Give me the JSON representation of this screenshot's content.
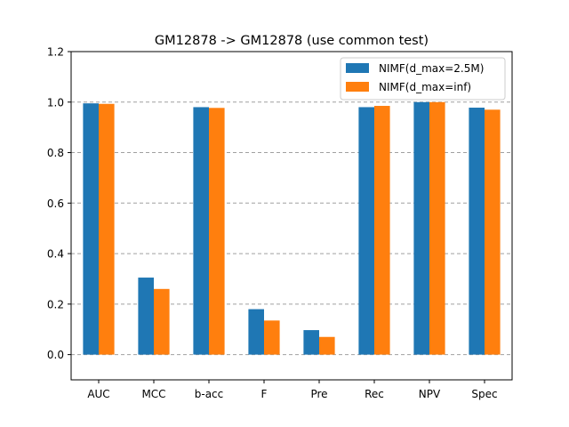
{
  "chart_data": {
    "type": "bar",
    "title": "GM12878 -> GM12878 (use common test)",
    "xlabel": "",
    "ylabel": "",
    "categories": [
      "AUC",
      "MCC",
      "b-acc",
      "F",
      "Pre",
      "Rec",
      "NPV",
      "Spec"
    ],
    "series": [
      {
        "name": "NIMF(d_max=2.5M)",
        "color": "#1f77b4",
        "values": [
          0.995,
          0.305,
          0.98,
          0.18,
          0.097,
          0.98,
          1.0,
          0.978
        ]
      },
      {
        "name": "NIMF(d_max=inf)",
        "color": "#ff7f0e",
        "values": [
          0.993,
          0.26,
          0.977,
          0.135,
          0.07,
          0.985,
          1.0,
          0.97
        ]
      }
    ],
    "ylim": [
      -0.1,
      1.2
    ],
    "yticks": [
      0.0,
      0.2,
      0.4,
      0.6,
      0.8,
      1.0,
      1.2
    ],
    "ytick_labels": [
      "0.0",
      "0.2",
      "0.4",
      "0.6",
      "0.8",
      "1.0",
      "1.2"
    ],
    "grid": "horizontal-dashed",
    "legend_position": "top-right"
  }
}
